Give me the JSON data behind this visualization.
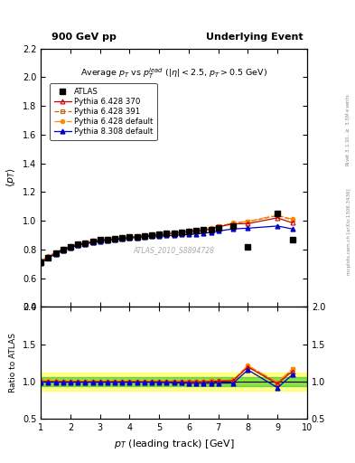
{
  "title_left": "900 GeV pp",
  "title_right": "Underlying Event",
  "plot_title": "Average $p_T$ vs $p_T^{lead}$ ($|\\eta| < 2.5$, $p_T > 0.5$ GeV)",
  "xlabel": "$p_T$ (leading track) [GeV]",
  "ylabel_main": "$\\langle p_T \\rangle$",
  "ylabel_ratio": "Ratio to ATLAS",
  "right_label": "mcplots.cern.ch [arXiv:1306.3436]",
  "right_label2": "Rivet 3.1.10, $\\geq$ 3.3M events",
  "watermark": "ATLAS_2010_S8894728",
  "xlim": [
    1.0,
    10.0
  ],
  "ylim_main": [
    0.4,
    2.2
  ],
  "ylim_ratio": [
    0.5,
    2.0
  ],
  "yticks_main": [
    0.4,
    0.6,
    0.8,
    1.0,
    1.2,
    1.4,
    1.6,
    1.8,
    2.0,
    2.2
  ],
  "yticks_ratio": [
    0.5,
    1.0,
    1.5,
    2.0
  ],
  "atlas_x": [
    1.0,
    1.25,
    1.5,
    1.75,
    2.0,
    2.25,
    2.5,
    2.75,
    3.0,
    3.25,
    3.5,
    3.75,
    4.0,
    4.25,
    4.5,
    4.75,
    5.0,
    5.25,
    5.5,
    5.75,
    6.0,
    6.25,
    6.5,
    6.75,
    7.0,
    7.5,
    8.0,
    9.0,
    9.5
  ],
  "atlas_y": [
    0.71,
    0.745,
    0.775,
    0.8,
    0.82,
    0.835,
    0.845,
    0.855,
    0.865,
    0.87,
    0.875,
    0.88,
    0.885,
    0.89,
    0.895,
    0.9,
    0.905,
    0.91,
    0.915,
    0.92,
    0.925,
    0.93,
    0.935,
    0.94,
    0.95,
    0.965,
    0.82,
    1.05,
    0.865
  ],
  "py6_370_x": [
    1.0,
    1.25,
    1.5,
    1.75,
    2.0,
    2.25,
    2.5,
    2.75,
    3.0,
    3.25,
    3.5,
    3.75,
    4.0,
    4.25,
    4.5,
    4.75,
    5.0,
    5.25,
    5.5,
    5.75,
    6.0,
    6.25,
    6.5,
    6.75,
    7.0,
    7.5,
    8.0,
    9.0,
    9.5
  ],
  "py6_370_y": [
    0.71,
    0.744,
    0.774,
    0.798,
    0.818,
    0.833,
    0.843,
    0.853,
    0.863,
    0.868,
    0.873,
    0.878,
    0.883,
    0.888,
    0.893,
    0.898,
    0.903,
    0.908,
    0.913,
    0.918,
    0.923,
    0.928,
    0.933,
    0.942,
    0.957,
    0.978,
    0.98,
    1.02,
    0.985
  ],
  "py6_370_color": "#cc0000",
  "py6_391_x": [
    1.0,
    1.25,
    1.5,
    1.75,
    2.0,
    2.25,
    2.5,
    2.75,
    3.0,
    3.25,
    3.5,
    3.75,
    4.0,
    4.25,
    4.5,
    4.75,
    5.0,
    5.25,
    5.5,
    5.75,
    6.0,
    6.25,
    6.5,
    6.75,
    7.0,
    7.5,
    8.0,
    9.0,
    9.5
  ],
  "py6_391_y": [
    0.715,
    0.748,
    0.778,
    0.802,
    0.822,
    0.837,
    0.847,
    0.857,
    0.867,
    0.872,
    0.877,
    0.882,
    0.887,
    0.892,
    0.897,
    0.902,
    0.907,
    0.912,
    0.917,
    0.922,
    0.927,
    0.932,
    0.937,
    0.946,
    0.961,
    0.982,
    0.993,
    1.036,
    1.006
  ],
  "py6_391_color": "#cc6600",
  "py6_def_x": [
    1.0,
    1.25,
    1.5,
    1.75,
    2.0,
    2.25,
    2.5,
    2.75,
    3.0,
    3.25,
    3.5,
    3.75,
    4.0,
    4.25,
    4.5,
    4.75,
    5.0,
    5.25,
    5.5,
    5.75,
    6.0,
    6.25,
    6.5,
    6.75,
    7.0,
    7.5,
    8.0,
    9.0,
    9.5
  ],
  "py6_def_y": [
    0.72,
    0.752,
    0.78,
    0.804,
    0.824,
    0.839,
    0.849,
    0.859,
    0.869,
    0.874,
    0.879,
    0.884,
    0.889,
    0.894,
    0.899,
    0.904,
    0.909,
    0.914,
    0.919,
    0.924,
    0.929,
    0.934,
    0.939,
    0.948,
    0.963,
    0.985,
    0.995,
    1.04,
    1.01
  ],
  "py6_def_color": "#ff8800",
  "py8_def_x": [
    1.0,
    1.25,
    1.5,
    1.75,
    2.0,
    2.25,
    2.5,
    2.75,
    3.0,
    3.25,
    3.5,
    3.75,
    4.0,
    4.25,
    4.5,
    4.75,
    5.0,
    5.25,
    5.5,
    5.75,
    6.0,
    6.25,
    6.5,
    6.75,
    7.0,
    7.5,
    8.0,
    9.0,
    9.5
  ],
  "py8_def_y": [
    0.705,
    0.739,
    0.769,
    0.793,
    0.813,
    0.828,
    0.838,
    0.848,
    0.858,
    0.863,
    0.868,
    0.873,
    0.878,
    0.883,
    0.888,
    0.893,
    0.893,
    0.898,
    0.898,
    0.903,
    0.903,
    0.908,
    0.913,
    0.918,
    0.928,
    0.943,
    0.948,
    0.963,
    0.943
  ],
  "py8_def_color": "#0000cc",
  "ratio_x": [
    1.0,
    1.25,
    1.5,
    1.75,
    2.0,
    2.25,
    2.5,
    2.75,
    3.0,
    3.25,
    3.5,
    3.75,
    4.0,
    4.25,
    4.5,
    4.75,
    5.0,
    5.25,
    5.5,
    5.75,
    6.0,
    6.25,
    6.5,
    6.75,
    7.0,
    7.5,
    8.0,
    9.0,
    9.5
  ],
  "ratio_py6_370_y": [
    1.0,
    1.0,
    0.999,
    0.998,
    0.997,
    0.997,
    0.997,
    0.997,
    0.997,
    0.997,
    0.997,
    0.997,
    0.997,
    0.997,
    0.997,
    0.997,
    0.997,
    0.997,
    0.997,
    0.997,
    0.997,
    0.997,
    0.997,
    1.002,
    1.007,
    1.013,
    1.195,
    0.971,
    1.138
  ],
  "ratio_py6_391_y": [
    1.007,
    1.004,
    1.004,
    1.003,
    1.002,
    1.002,
    1.002,
    1.002,
    1.002,
    1.002,
    1.002,
    1.002,
    1.002,
    1.002,
    1.002,
    1.002,
    1.002,
    1.002,
    1.002,
    1.002,
    1.002,
    1.002,
    1.002,
    1.006,
    1.011,
    1.018,
    1.21,
    0.987,
    1.163
  ],
  "ratio_py6_def_y": [
    1.014,
    1.009,
    1.007,
    1.005,
    1.005,
    1.005,
    1.005,
    1.005,
    1.005,
    1.005,
    1.005,
    1.005,
    1.005,
    1.005,
    1.005,
    1.005,
    1.005,
    1.005,
    1.005,
    1.004,
    1.004,
    1.004,
    1.004,
    1.009,
    1.014,
    1.021,
    1.213,
    0.99,
    1.168
  ],
  "ratio_py8_def_y": [
    0.993,
    0.993,
    0.992,
    0.991,
    0.991,
    0.991,
    0.991,
    0.991,
    0.991,
    0.991,
    0.991,
    0.991,
    0.991,
    0.991,
    0.991,
    0.991,
    0.986,
    0.988,
    0.982,
    0.983,
    0.978,
    0.977,
    0.977,
    0.978,
    0.979,
    0.979,
    1.157,
    0.918,
    1.091
  ],
  "band_yellow_lo": 0.88,
  "band_yellow_hi": 1.12,
  "band_green_lo": 0.94,
  "band_green_hi": 1.06,
  "band_color_yellow": "#ffff00",
  "band_color_green": "#00bb00",
  "band_alpha": 0.45
}
